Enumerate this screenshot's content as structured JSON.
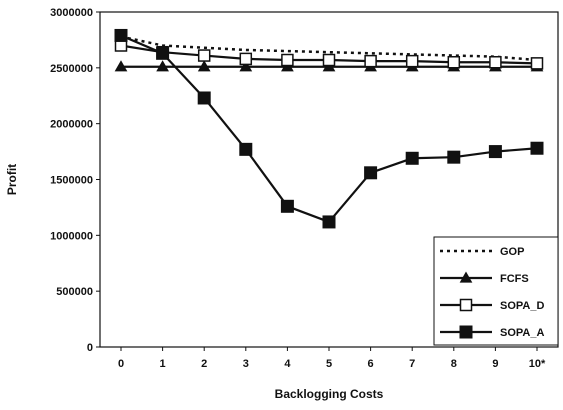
{
  "chart_data": {
    "type": "line",
    "title": "",
    "xlabel": "Backlogging Costs",
    "ylabel": "Profit",
    "categories": [
      "0",
      "1",
      "2",
      "3",
      "4",
      "5",
      "6",
      "7",
      "8",
      "9",
      "10*"
    ],
    "ylim": [
      0,
      3000000
    ],
    "yticks": [
      0,
      500000,
      1000000,
      1500000,
      2000000,
      2500000,
      3000000
    ],
    "ytick_labels": [
      "0",
      "500000",
      "1000000",
      "1500000",
      "2000000",
      "2500000",
      "3000000"
    ],
    "grid": false,
    "legend_position": "bottom-right",
    "series": [
      {
        "name": "GOP",
        "style": "dotted",
        "marker": "none",
        "color": "#111111",
        "values": [
          2780000,
          2700000,
          2680000,
          2660000,
          2650000,
          2640000,
          2630000,
          2620000,
          2610000,
          2600000,
          2570000
        ]
      },
      {
        "name": "FCFS",
        "style": "solid",
        "marker": "triangle",
        "color": "#111111",
        "values": [
          2510000,
          2510000,
          2510000,
          2510000,
          2510000,
          2510000,
          2510000,
          2510000,
          2510000,
          2510000,
          2510000
        ]
      },
      {
        "name": "SOPA_D",
        "style": "solid",
        "marker": "open-square",
        "color": "#111111",
        "values": [
          2700000,
          2640000,
          2610000,
          2580000,
          2570000,
          2570000,
          2560000,
          2560000,
          2550000,
          2550000,
          2540000
        ]
      },
      {
        "name": "SOPA_A",
        "style": "solid",
        "marker": "filled-square",
        "color": "#111111",
        "values": [
          2790000,
          2630000,
          2230000,
          1770000,
          1260000,
          1120000,
          1560000,
          1690000,
          1700000,
          1750000,
          1780000
        ]
      }
    ]
  }
}
